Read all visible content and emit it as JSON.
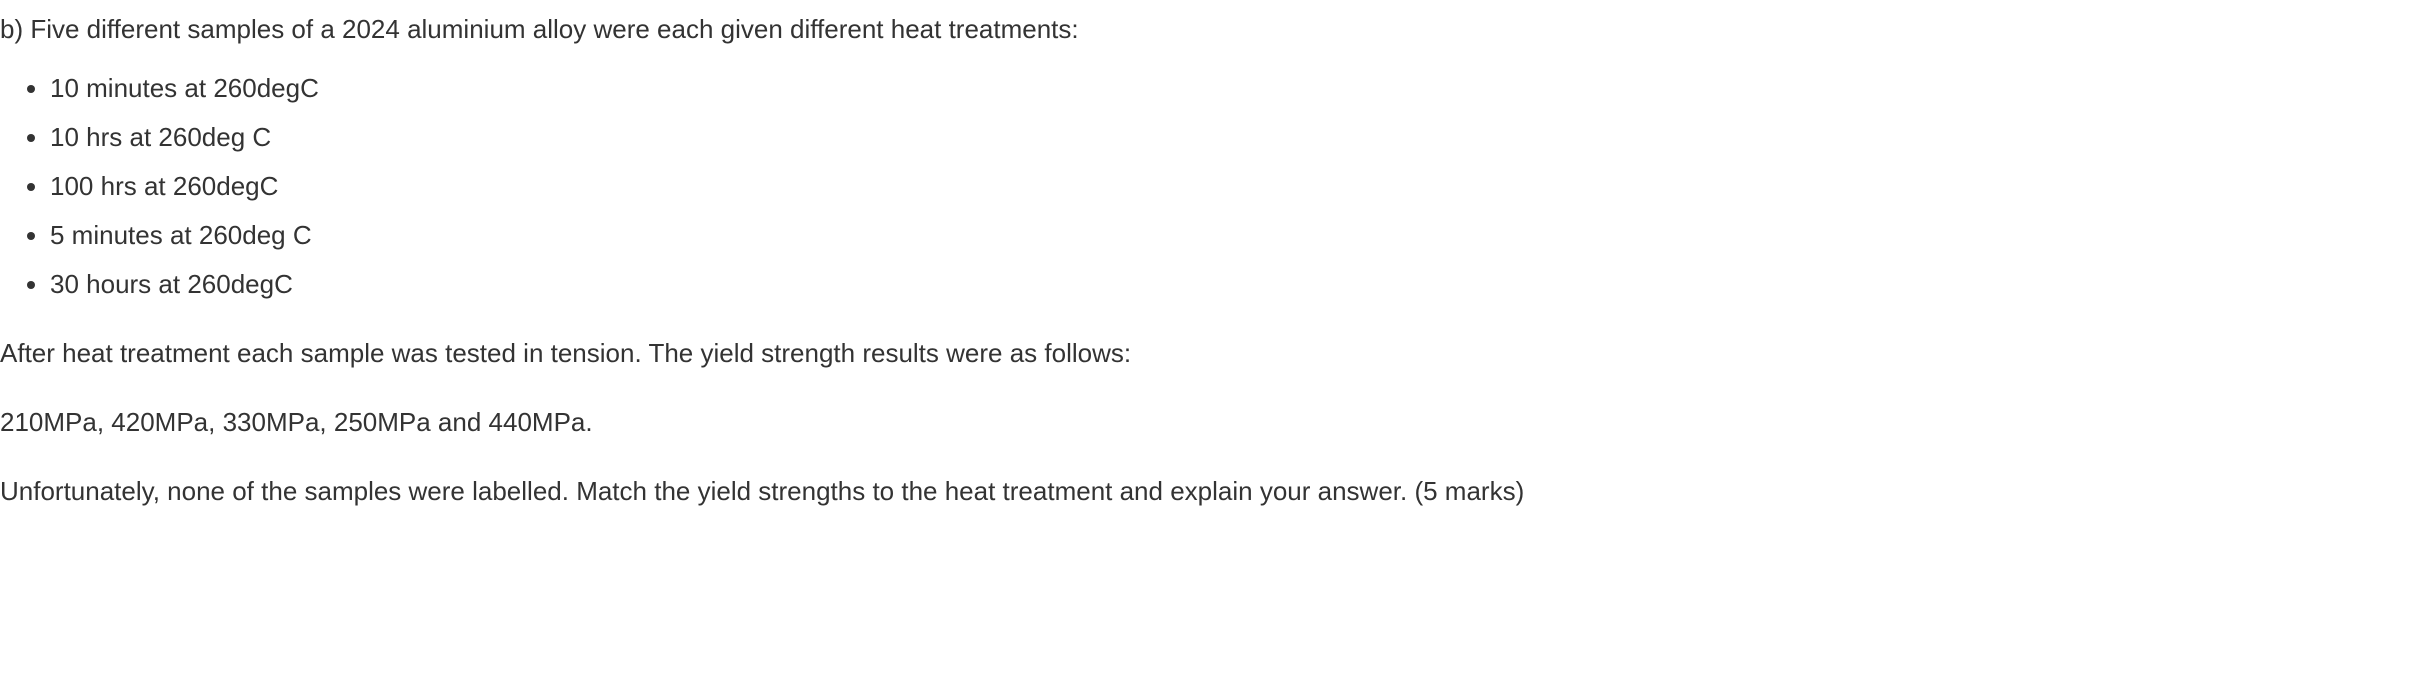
{
  "question": {
    "intro": "b) Five different samples of a 2024 aluminium alloy were each given different heat treatments:",
    "treatments": [
      "10 minutes at 260degC",
      "10 hrs at 260deg C",
      "100 hrs at 260degC",
      "5 minutes at 260deg C",
      "30 hours at 260degC"
    ],
    "afterTreatment": "After heat treatment each sample was tested in tension. The yield strength results were as follows:",
    "results": "210MPa, 420MPa, 330MPa, 250MPa and 440MPa.",
    "task": "Unfortunately, none of the samples were labelled. Match the yield strengths to the heat treatment and explain your answer. (5 marks)"
  }
}
